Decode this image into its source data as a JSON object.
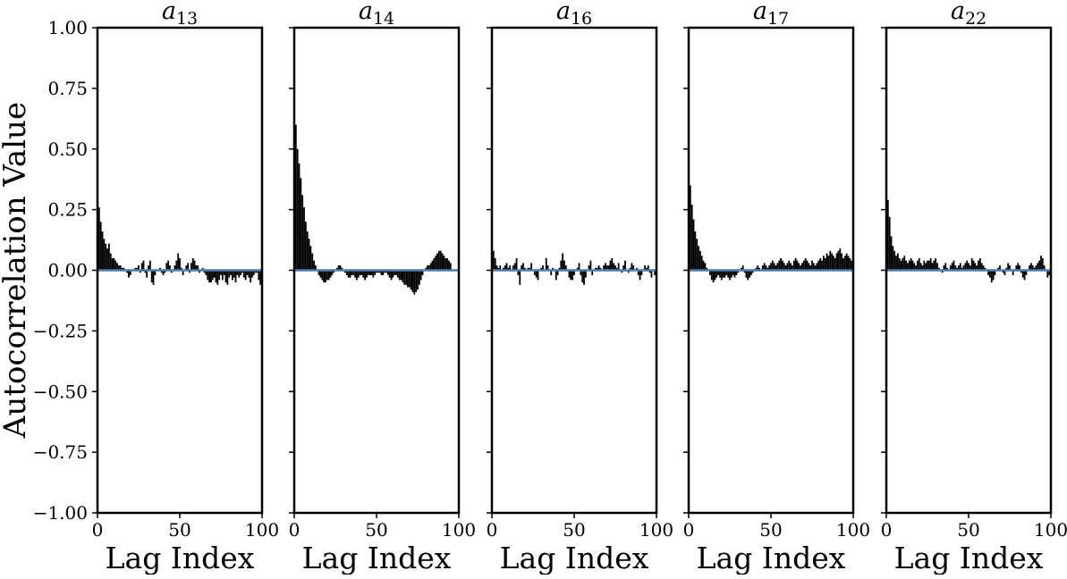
{
  "figure": {
    "ylabel": "Autocorrelation Value",
    "xlabel": "Lag Index",
    "yticks": [
      "1.00",
      "0.75",
      "0.50",
      "0.25",
      "0.00",
      "−0.25",
      "−0.50",
      "−0.75",
      "−1.00"
    ],
    "xticks": [
      "0",
      "50",
      "100"
    ],
    "colors": {
      "bars": "#000000",
      "zero_line": "#4c7fb0",
      "frame": "#000000"
    }
  },
  "chart_data": [
    {
      "type": "bar",
      "title_base": "a",
      "title_sub": "13",
      "xlabel": "Lag Index",
      "ylabel": "Autocorrelation Value",
      "xlim": [
        0,
        100
      ],
      "ylim": [
        -1,
        1
      ],
      "grid": false,
      "x_start": 0,
      "values": [
        0.33,
        0.26,
        0.2,
        0.16,
        0.13,
        0.11,
        0.09,
        0.11,
        0.07,
        0.05,
        0.05,
        0.04,
        0.03,
        0.02,
        0.02,
        0.01,
        0.01,
        0.0,
        -0.01,
        -0.03,
        -0.02,
        0.0,
        0.0,
        0.01,
        0.01,
        0.02,
        -0.01,
        0.03,
        0.04,
        -0.01,
        -0.03,
        0.02,
        0.04,
        -0.05,
        -0.06,
        -0.02,
        0.0,
        0.0,
        0.01,
        -0.01,
        -0.02,
        -0.01,
        0.03,
        0.04,
        0.02,
        -0.01,
        0.0,
        0.02,
        0.04,
        0.07,
        0.05,
        0.01,
        -0.02,
        0.0,
        0.02,
        0.03,
        -0.01,
        0.03,
        0.05,
        0.04,
        0.02,
        0.02,
        -0.01,
        0.0,
        0.01,
        -0.01,
        -0.02,
        -0.04,
        -0.05,
        -0.05,
        -0.04,
        -0.03,
        -0.05,
        -0.06,
        -0.04,
        -0.02,
        -0.04,
        -0.02,
        -0.05,
        -0.06,
        -0.03,
        -0.02,
        -0.04,
        -0.03,
        -0.05,
        -0.02,
        -0.03,
        -0.02,
        -0.01,
        -0.03,
        -0.04,
        -0.02,
        -0.03,
        -0.05,
        -0.03,
        -0.02,
        -0.01,
        -0.01,
        -0.04,
        -0.06
      ]
    },
    {
      "type": "bar",
      "title_base": "a",
      "title_sub": "14",
      "xlabel": "Lag Index",
      "ylabel": "Autocorrelation Value",
      "xlim": [
        0,
        100
      ],
      "ylim": [
        -1,
        1
      ],
      "grid": false,
      "x_start": 0,
      "values": [
        0.64,
        0.6,
        0.5,
        0.44,
        0.38,
        0.31,
        0.26,
        0.2,
        0.16,
        0.13,
        0.1,
        0.07,
        0.04,
        0.02,
        0.0,
        -0.02,
        -0.03,
        -0.04,
        -0.05,
        -0.05,
        -0.04,
        -0.04,
        -0.03,
        -0.02,
        -0.01,
        0.0,
        0.01,
        0.02,
        0.02,
        0.01,
        0.0,
        -0.01,
        -0.02,
        -0.03,
        -0.03,
        -0.02,
        -0.02,
        -0.03,
        -0.04,
        -0.03,
        -0.02,
        -0.02,
        -0.03,
        -0.04,
        -0.03,
        -0.02,
        -0.02,
        -0.02,
        -0.03,
        -0.02,
        -0.01,
        -0.01,
        -0.01,
        -0.02,
        -0.02,
        -0.01,
        -0.01,
        -0.02,
        -0.03,
        -0.04,
        -0.03,
        -0.02,
        -0.02,
        -0.03,
        -0.04,
        -0.04,
        -0.05,
        -0.06,
        -0.06,
        -0.07,
        -0.07,
        -0.08,
        -0.09,
        -0.1,
        -0.09,
        -0.08,
        -0.06,
        -0.04,
        -0.02,
        0.0,
        0.01,
        0.02,
        0.02,
        0.03,
        0.04,
        0.05,
        0.06,
        0.07,
        0.08,
        0.08,
        0.07,
        0.06,
        0.05,
        0.05,
        0.04,
        0.03
      ]
    },
    {
      "type": "bar",
      "title_base": "a",
      "title_sub": "16",
      "xlabel": "Lag Index",
      "ylabel": "Autocorrelation Value",
      "xlim": [
        0,
        100
      ],
      "ylim": [
        -1,
        1
      ],
      "grid": false,
      "x_start": 0,
      "values": [
        0.19,
        0.08,
        0.05,
        0.02,
        0.01,
        0.02,
        0.0,
        0.01,
        0.02,
        0.03,
        0.01,
        0.02,
        0.0,
        0.02,
        0.03,
        0.05,
        -0.02,
        -0.06,
        0.02,
        0.03,
        0.01,
        0.0,
        0.01,
        0.01,
        0.03,
        0.0,
        -0.02,
        -0.03,
        -0.04,
        0.0,
        0.01,
        0.02,
        0.0,
        0.05,
        0.02,
        0.0,
        -0.02,
        0.01,
        0.0,
        -0.04,
        -0.02,
        0.01,
        0.04,
        0.07,
        0.04,
        0.02,
        0.0,
        -0.03,
        -0.04,
        -0.04,
        -0.02,
        0.0,
        0.01,
        0.03,
        -0.02,
        -0.05,
        -0.06,
        -0.03,
        0.0,
        0.02,
        0.04,
        -0.02,
        0.0,
        0.01,
        0.01,
        0.02,
        0.01,
        0.0,
        0.02,
        0.03,
        0.02,
        0.02,
        0.04,
        0.05,
        0.03,
        0.02,
        0.01,
        0.03,
        0.0,
        -0.01,
        0.02,
        0.04,
        0.0,
        -0.01,
        0.01,
        0.03,
        0.02,
        0.0,
        0.01,
        -0.02,
        -0.04,
        -0.02,
        0.0,
        0.02,
        0.01,
        0.02,
        -0.01,
        -0.03,
        0.0,
        -0.02,
        -0.04
      ]
    },
    {
      "type": "bar",
      "title_base": "a",
      "title_sub": "17",
      "xlabel": "Lag Index",
      "ylabel": "Autocorrelation Value",
      "xlim": [
        0,
        100
      ],
      "ylim": [
        -1,
        1
      ],
      "grid": false,
      "x_start": 0,
      "values": [
        0.45,
        0.35,
        0.27,
        0.21,
        0.16,
        0.13,
        0.1,
        0.08,
        0.06,
        0.04,
        0.03,
        0.01,
        0.0,
        -0.02,
        -0.04,
        -0.05,
        -0.04,
        -0.03,
        -0.02,
        -0.03,
        -0.04,
        -0.03,
        -0.03,
        -0.02,
        -0.03,
        -0.04,
        -0.03,
        -0.02,
        -0.03,
        -0.02,
        -0.01,
        0.0,
        0.01,
        0.02,
        -0.01,
        -0.03,
        -0.04,
        -0.03,
        -0.02,
        -0.01,
        0.0,
        0.01,
        0.02,
        0.01,
        0.0,
        0.02,
        0.03,
        0.02,
        0.01,
        0.02,
        0.03,
        0.04,
        0.03,
        0.02,
        0.03,
        0.04,
        0.05,
        0.04,
        0.03,
        0.02,
        0.03,
        0.04,
        0.03,
        0.02,
        0.04,
        0.05,
        0.04,
        0.03,
        0.02,
        0.03,
        0.04,
        0.05,
        0.04,
        0.03,
        0.02,
        0.04,
        0.03,
        0.02,
        0.03,
        0.04,
        0.05,
        0.04,
        0.06,
        0.05,
        0.07,
        0.06,
        0.08,
        0.07,
        0.06,
        0.05,
        0.07,
        0.08,
        0.09,
        0.07,
        0.05,
        0.06,
        0.07,
        0.06,
        0.05,
        0.04
      ]
    },
    {
      "type": "bar",
      "title_base": "a",
      "title_sub": "22",
      "xlabel": "Lag Index",
      "ylabel": "Autocorrelation Value",
      "xlim": [
        0,
        100
      ],
      "ylim": [
        -1,
        1
      ],
      "grid": false,
      "x_start": 0,
      "values": [
        0.4,
        0.29,
        0.22,
        0.14,
        0.1,
        0.08,
        0.06,
        0.07,
        0.05,
        0.04,
        0.05,
        0.06,
        0.04,
        0.03,
        0.04,
        0.05,
        0.04,
        0.03,
        0.02,
        0.04,
        0.05,
        0.03,
        0.02,
        0.04,
        0.03,
        0.04,
        0.04,
        0.05,
        0.03,
        0.04,
        0.05,
        0.03,
        0.01,
        0.0,
        -0.01,
        0.02,
        0.03,
        0.01,
        0.0,
        0.02,
        0.03,
        0.04,
        0.02,
        0.01,
        0.02,
        0.03,
        0.01,
        0.02,
        0.03,
        0.04,
        0.03,
        0.02,
        0.05,
        0.04,
        0.03,
        0.02,
        0.04,
        0.05,
        0.03,
        0.02,
        0.01,
        0.0,
        -0.02,
        -0.03,
        -0.05,
        -0.04,
        -0.02,
        0.0,
        0.01,
        0.02,
        0.0,
        -0.01,
        -0.02,
        0.01,
        0.03,
        0.02,
        0.0,
        -0.02,
        0.0,
        0.02,
        0.03,
        0.02,
        -0.01,
        -0.03,
        -0.04,
        -0.02,
        0.0,
        0.02,
        0.03,
        0.02,
        0.01,
        0.02,
        0.03,
        0.04,
        0.06,
        0.05,
        0.02,
        0.0,
        -0.03,
        -0.02,
        -0.05
      ]
    }
  ]
}
